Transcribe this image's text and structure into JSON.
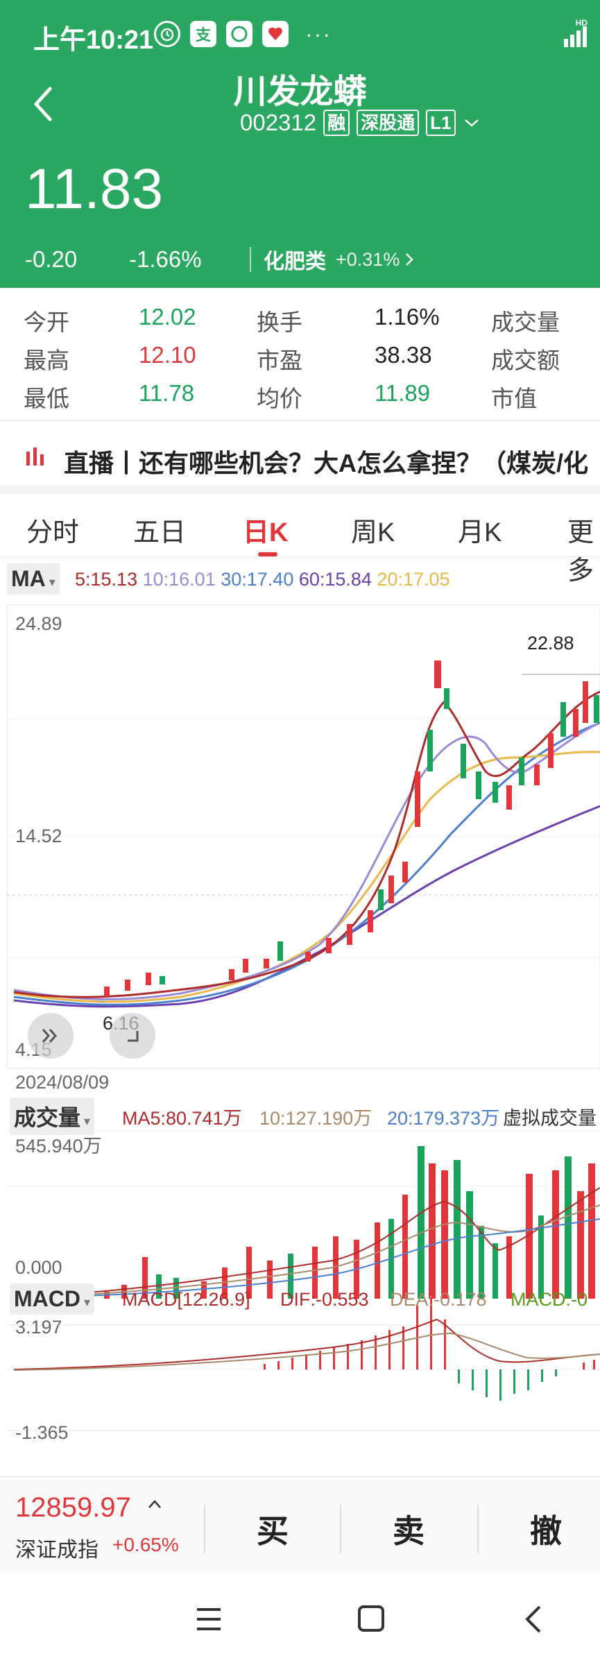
{
  "status_bar": {
    "time": "上午10:21",
    "icons": [
      "alarm-icon",
      "alipay-icon",
      "app-icon",
      "app-icon-red"
    ],
    "more": "···",
    "network": "HD"
  },
  "header": {
    "stock_name": "川发龙蟒",
    "stock_code": "002312",
    "tags": [
      "融",
      "深股通",
      "L1"
    ],
    "price": "11.83",
    "change": "-0.20",
    "change_pct": "-1.66%",
    "sector_name": "化肥类",
    "sector_pct": "+0.31%"
  },
  "quote": {
    "open_label": "今开",
    "open": "12.02",
    "high_label": "最高",
    "high": "12.10",
    "low_label": "最低",
    "low": "11.78",
    "turnover_label": "换手",
    "turnover": "1.16%",
    "pe_label": "市盈",
    "pe": "38.38",
    "avg_label": "均价",
    "avg": "11.89",
    "volume_label": "成交量",
    "amount_label": "成交额",
    "mcap_label": "市值"
  },
  "news": {
    "text": "直播丨还有哪些机会？大A怎么拿捏？（煤炭/化"
  },
  "tabs": [
    "分时",
    "五日",
    "日K",
    "周K",
    "月K",
    "更多"
  ],
  "active_tab": "日K",
  "ma": {
    "button": "MA",
    "ma5": "5:15.13",
    "ma10": "10:16.01",
    "ma30": "30:17.40",
    "ma60": "60:15.84",
    "ma20": "20:17.05"
  },
  "kline_axis": {
    "top": "24.89",
    "mid": "14.52",
    "bottom": "4.15",
    "date": "2024/08/09",
    "max_label": "22.88",
    "min_label": "6.16"
  },
  "volume": {
    "button": "成交量",
    "ma5": "MA5:80.741万",
    "ma10": "10:127.190万",
    "ma20": "20:179.373万",
    "virtual": "虚拟成交量",
    "top": "545.940万",
    "bottom": "0.000"
  },
  "macd": {
    "button": "MACD",
    "params": "MACD[12.26.9]",
    "dif": "DIF:-0.553",
    "dea": "DEA:-0.178",
    "macd": "MACD:-0",
    "top": "3.197",
    "bottom": "-1.365"
  },
  "bottom": {
    "index_value": "12859.97",
    "index_name": "深证成指",
    "index_pct": "+0.65%",
    "buy": "买",
    "sell": "卖",
    "cancel": "撤"
  },
  "colors": {
    "header_green": "#2aa861",
    "up_red": "#e2363b",
    "down_green": "#1aa35a",
    "ma5": "#b02a2a",
    "ma10": "#9a8ad8",
    "ma20": "#e8b84a",
    "ma30": "#4a7fd0",
    "ma60": "#6a3fb0"
  }
}
